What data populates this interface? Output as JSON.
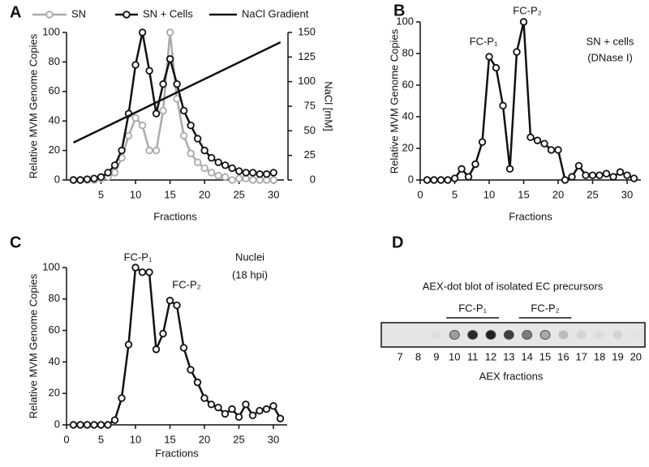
{
  "chart_data": [
    {
      "type": "line",
      "panel": "A",
      "x_label": "Fractions",
      "y_label": "Relative MVM Genome Copies",
      "y2_label": "NaCl [mM]",
      "x": [
        1,
        2,
        3,
        4,
        5,
        6,
        7,
        8,
        9,
        10,
        11,
        12,
        13,
        14,
        15,
        16,
        17,
        18,
        19,
        20,
        21,
        22,
        23,
        24,
        25,
        26,
        27,
        28,
        29,
        30
      ],
      "xlim": [
        0,
        31.5
      ],
      "xticks": [
        5,
        10,
        15,
        20,
        25,
        30
      ],
      "ylim": [
        0,
        100
      ],
      "yticks": [
        0,
        20,
        40,
        60,
        80,
        100
      ],
      "y2lim": [
        0,
        150
      ],
      "y2ticks": [
        0,
        25,
        50,
        75,
        100,
        125,
        150
      ],
      "series": [
        {
          "name": "SN",
          "color": "#aaaaaa",
          "markers": true,
          "values": [
            0,
            0,
            0,
            0,
            1,
            2,
            5,
            15,
            30,
            42,
            37,
            20,
            20,
            47,
            100,
            55,
            30,
            18,
            12,
            8,
            5,
            3,
            2,
            0,
            1,
            1,
            0,
            0,
            0,
            0
          ]
        },
        {
          "name": "SN + Cells",
          "color": "#111111",
          "markers": true,
          "values": [
            0,
            0,
            0.5,
            1,
            2,
            5,
            10,
            20,
            45,
            78,
            100,
            74,
            45,
            65,
            82,
            65,
            47,
            37,
            28,
            20,
            15,
            12,
            10,
            8,
            6,
            5,
            5,
            4,
            4,
            5
          ]
        },
        {
          "name": "NaCl Gradient",
          "color": "#111111",
          "markers": false,
          "axis": "y2",
          "x": [
            1,
            31
          ],
          "values": [
            38,
            140
          ]
        }
      ]
    },
    {
      "type": "line",
      "panel": "B",
      "x_label": "Fractions",
      "y_label": "Relative MVM Genome Copies",
      "x": [
        1,
        2,
        3,
        4,
        5,
        6,
        7,
        8,
        9,
        10,
        11,
        12,
        13,
        14,
        15,
        16,
        17,
        18,
        19,
        20,
        21,
        22,
        23,
        24,
        25,
        26,
        27,
        28,
        29,
        30,
        31
      ],
      "xlim": [
        0,
        32
      ],
      "xticks": [
        0,
        5,
        10,
        15,
        20,
        25,
        30
      ],
      "ylim": [
        0,
        100
      ],
      "yticks": [
        0,
        20,
        40,
        60,
        80,
        100
      ],
      "annotations": [
        "FC-P₁",
        "FC-P₂",
        "SN + cells",
        "(DNase I)"
      ],
      "series": [
        {
          "name": "SN + cells",
          "color": "#111111",
          "markers": true,
          "values": [
            0,
            0,
            0,
            0,
            1,
            7,
            2,
            10,
            24,
            78,
            71,
            47,
            7,
            81,
            100,
            27,
            25,
            23,
            19,
            19,
            0,
            2,
            9,
            3,
            3,
            3,
            4,
            2,
            5,
            3,
            1
          ]
        }
      ]
    },
    {
      "type": "line",
      "panel": "C",
      "x_label": "Fractions",
      "y_label": "Relative MVM Genome Copies",
      "x": [
        1,
        2,
        3,
        4,
        5,
        6,
        7,
        8,
        9,
        10,
        11,
        12,
        13,
        14,
        15,
        16,
        17,
        18,
        19,
        20,
        21,
        22,
        23,
        24,
        25,
        26,
        27,
        28,
        29,
        30,
        31
      ],
      "xlim": [
        0,
        32
      ],
      "xticks": [
        0,
        5,
        10,
        15,
        20,
        25,
        30
      ],
      "ylim": [
        0,
        100
      ],
      "yticks": [
        0,
        20,
        40,
        60,
        80,
        100
      ],
      "annotations": [
        "FC-P₁",
        "FC-P₂",
        "Nuclei",
        "(18 hpi)"
      ],
      "series": [
        {
          "name": "Nuclei",
          "color": "#111111",
          "markers": true,
          "values": [
            0,
            0,
            0,
            0,
            0,
            0,
            3,
            17,
            51,
            100,
            97,
            97,
            48,
            58,
            79,
            76,
            49,
            35,
            27,
            17,
            13,
            11,
            7,
            10,
            5,
            13,
            6,
            9,
            10,
            12,
            4
          ]
        }
      ]
    },
    {
      "type": "dot-blot",
      "panel": "D",
      "title": "AEX-dot blot of isolated EC precursors",
      "x_label": "AEX fractions",
      "groups": [
        "FC-P₁",
        "FC-P₂"
      ],
      "categories": [
        "7",
        "8",
        "9",
        "10",
        "11",
        "12",
        "13",
        "14",
        "15",
        "16",
        "17",
        "18",
        "19",
        "20"
      ],
      "values": [
        0,
        0,
        3,
        35,
        90,
        95,
        80,
        50,
        30,
        20,
        8,
        5,
        8,
        2
      ]
    }
  ]
}
